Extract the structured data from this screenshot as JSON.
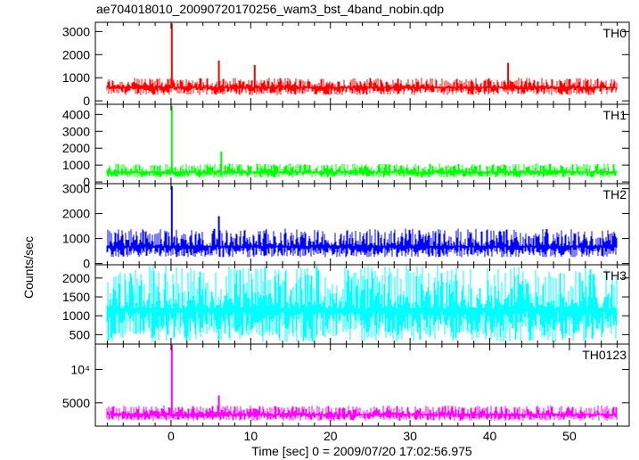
{
  "title": "ae704018010_20090720170256_wam3_bst_4band_nobin.qdp",
  "ylabel": "Counts/sec",
  "xlabel": "Time [sec] 0 = 2009/07/20 17:02:56.975",
  "chart_data": {
    "type": "line",
    "xlim": [
      -9.5,
      57.5
    ],
    "xticks": [
      0,
      10,
      20,
      30,
      40,
      50
    ],
    "x_minor_step": 2,
    "x_start": -8,
    "x_end": 56,
    "grid": false,
    "panels": [
      {
        "name": "TH0",
        "color": "#ff0000",
        "ylim": [
          -150,
          3400
        ],
        "yticks": [
          {
            "value": 0,
            "label": "0"
          },
          {
            "value": 1000,
            "label": "1000"
          },
          {
            "value": 2000,
            "label": "2000"
          },
          {
            "value": 3000,
            "label": "3000"
          }
        ],
        "baseline": 600,
        "noise_low": 250,
        "noise_high": 1000,
        "spikes": [
          {
            "x": 0.1,
            "y": 3350
          },
          {
            "x": 6.0,
            "y": 1750
          },
          {
            "x": 10.5,
            "y": 1550
          },
          {
            "x": 42.3,
            "y": 1650
          }
        ]
      },
      {
        "name": "TH1",
        "color": "#00ff00",
        "ylim": [
          -100,
          4600
        ],
        "yticks": [
          {
            "value": 0,
            "label": "0"
          },
          {
            "value": 1000,
            "label": "1000"
          },
          {
            "value": 2000,
            "label": "2000"
          },
          {
            "value": 3000,
            "label": "3000"
          },
          {
            "value": 4000,
            "label": "4000"
          }
        ],
        "baseline": 600,
        "noise_low": 250,
        "noise_high": 1100,
        "spikes": [
          {
            "x": 0.1,
            "y": 4500
          },
          {
            "x": 6.3,
            "y": 1800
          }
        ]
      },
      {
        "name": "TH2",
        "color": "#0000ff",
        "ylim": [
          -50,
          3200
        ],
        "yticks": [
          {
            "value": 0,
            "label": "0"
          },
          {
            "value": 1000,
            "label": "1000"
          },
          {
            "value": 2000,
            "label": "2000"
          },
          {
            "value": 3000,
            "label": "3000"
          }
        ],
        "baseline": 700,
        "noise_low": 250,
        "noise_high": 1400,
        "spikes": [
          {
            "x": 0.1,
            "y": 3100
          },
          {
            "x": 6.0,
            "y": 1900
          }
        ]
      },
      {
        "name": "TH3",
        "color": "#00ffff",
        "ylim": [
          250,
          2350
        ],
        "yticks": [
          {
            "value": 500,
            "label": "500"
          },
          {
            "value": 1000,
            "label": "1000"
          },
          {
            "value": 1500,
            "label": "1500"
          },
          {
            "value": 2000,
            "label": "2000"
          }
        ],
        "baseline": 1200,
        "noise_low": 300,
        "noise_high": 2350,
        "spikes": []
      },
      {
        "name": "TH0123",
        "color": "#ff00ff",
        "ylim": [
          1500,
          13800
        ],
        "yticks": [
          {
            "value": 5000,
            "label": "5000"
          },
          {
            "value": 10000,
            "label": "10⁴"
          }
        ],
        "baseline": 3300,
        "noise_low": 2300,
        "noise_high": 4600,
        "spikes": [
          {
            "x": 0.1,
            "y": 13700
          },
          {
            "x": 6.0,
            "y": 6100
          }
        ]
      }
    ]
  }
}
